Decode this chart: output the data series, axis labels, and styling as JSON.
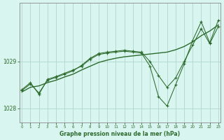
{
  "title": "Graphe pression niveau de la mer (hPa)",
  "bg_color": "#d8f5f0",
  "grid_color": "#b0d8cc",
  "line_color": "#2d6b2d",
  "ylim": [
    1027.7,
    1030.25
  ],
  "yticks": [
    1028,
    1029
  ],
  "xlim": [
    -0.3,
    23.3
  ],
  "xticks": [
    0,
    1,
    2,
    3,
    4,
    5,
    6,
    7,
    8,
    9,
    10,
    11,
    12,
    13,
    14,
    15,
    16,
    17,
    18,
    19,
    20,
    21,
    22,
    23
  ],
  "line1_x": [
    0,
    1,
    2,
    3,
    4,
    5,
    6,
    7,
    8,
    9,
    10,
    11,
    12,
    13,
    14,
    15,
    16,
    17,
    18,
    19,
    20,
    21,
    22,
    23
  ],
  "line1_y": [
    1028.4,
    1028.55,
    1028.3,
    1028.62,
    1028.68,
    1028.75,
    1028.82,
    1028.9,
    1029.05,
    1029.15,
    1029.18,
    1029.2,
    1029.22,
    1029.2,
    1029.18,
    1028.9,
    1028.25,
    1028.05,
    1028.5,
    1028.95,
    1029.45,
    1029.85,
    1029.4,
    1029.88
  ],
  "line2_x": [
    0,
    1,
    2,
    3,
    4,
    5,
    6,
    7,
    8,
    9,
    10,
    11,
    12,
    13,
    14,
    15,
    16,
    17,
    18,
    19,
    20,
    21,
    22,
    23
  ],
  "line2_y": [
    1028.38,
    1028.52,
    1028.33,
    1028.6,
    1028.66,
    1028.73,
    1028.8,
    1028.92,
    1029.07,
    1029.17,
    1029.2,
    1029.22,
    1029.24,
    1029.22,
    1029.2,
    1029.0,
    1028.7,
    1028.45,
    1028.65,
    1029.0,
    1029.35,
    1029.7,
    1029.38,
    1029.75
  ],
  "smooth_x": [
    0,
    1,
    2,
    3,
    4,
    5,
    6,
    7,
    8,
    9,
    10,
    11,
    12,
    13,
    14,
    15,
    16,
    17,
    18,
    19,
    20,
    21,
    22,
    23
  ],
  "smooth_y": [
    1028.35,
    1028.45,
    1028.48,
    1028.55,
    1028.6,
    1028.67,
    1028.73,
    1028.82,
    1028.9,
    1028.98,
    1029.03,
    1029.07,
    1029.1,
    1029.12,
    1029.14,
    1029.16,
    1029.18,
    1029.2,
    1029.25,
    1029.32,
    1029.42,
    1029.55,
    1029.65,
    1029.78
  ]
}
